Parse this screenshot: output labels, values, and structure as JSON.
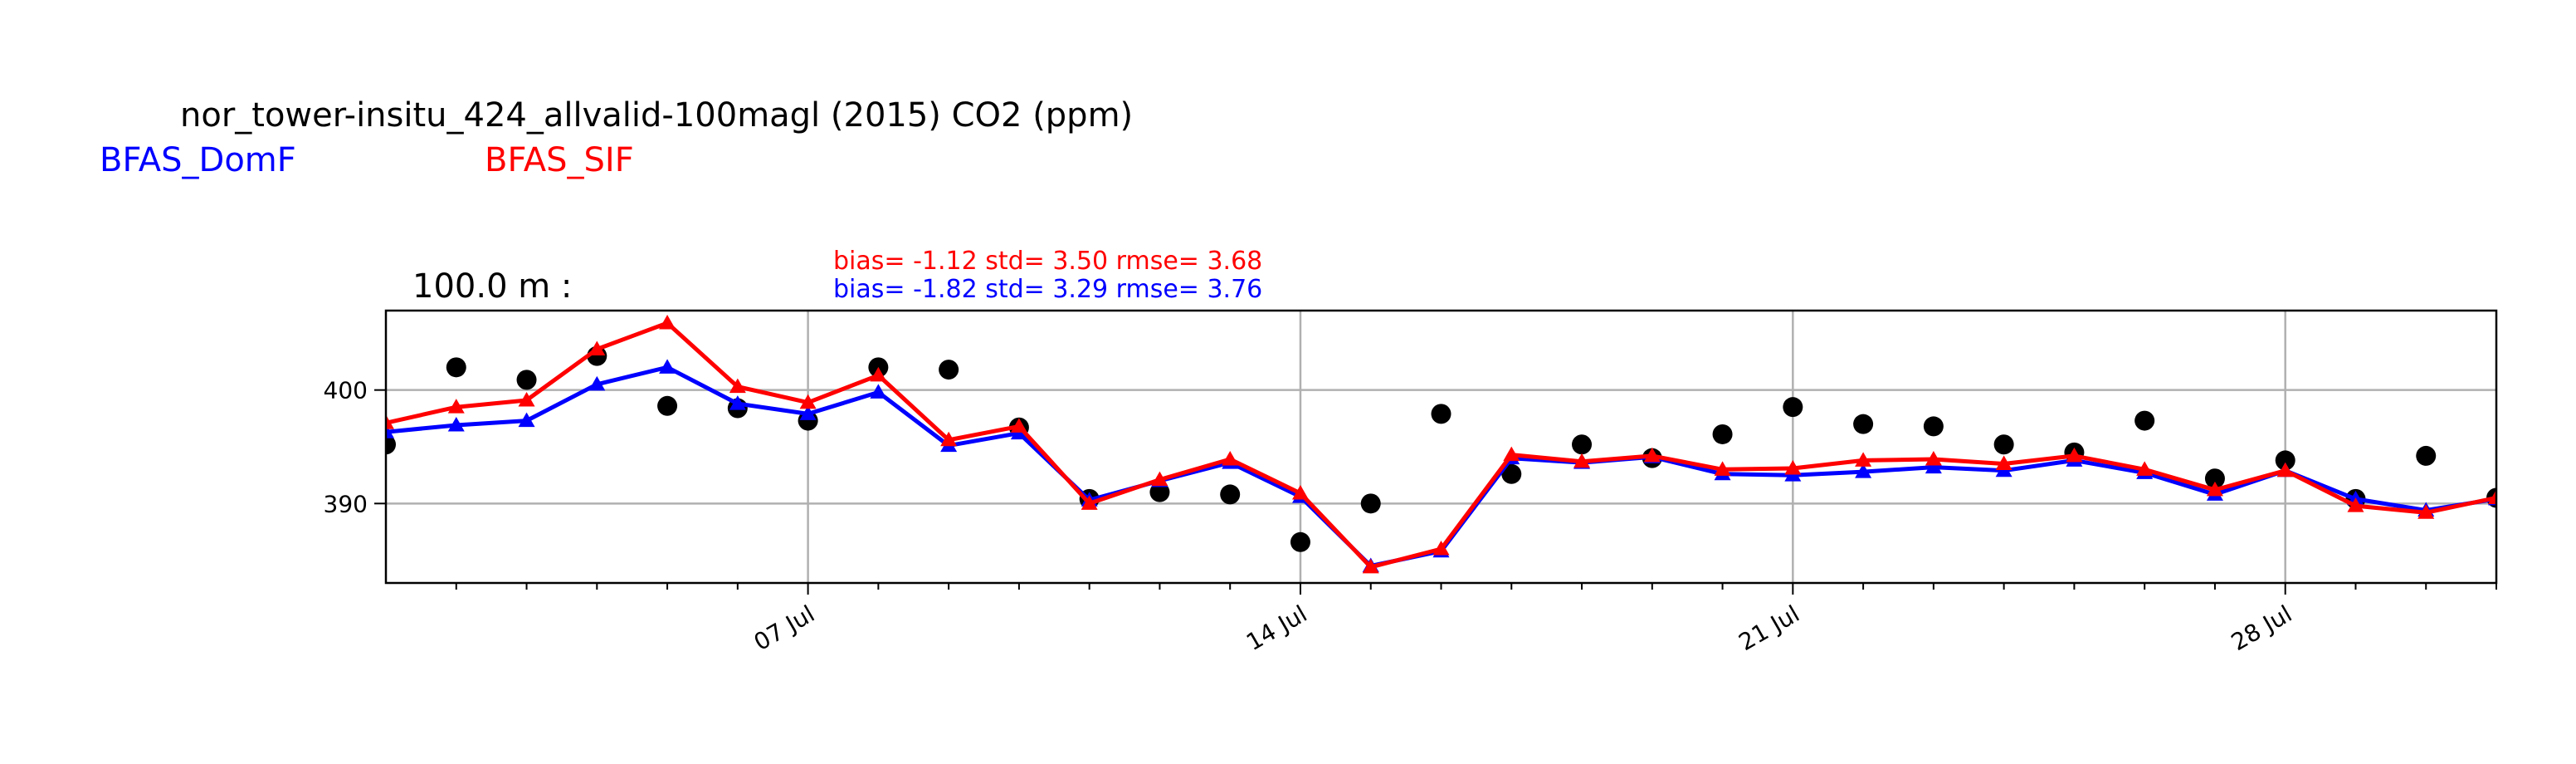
{
  "colors": {
    "obs": "#000000",
    "model_a": "#0000ff",
    "model_b": "#ff0000",
    "grid": "#b0b0b0"
  },
  "chart_data": {
    "type": "line",
    "title": "nor_tower-insitu_424_allvalid-100magl (2015) CO2 (ppm)",
    "panel_label": "100.0 m :",
    "legend": [
      {
        "name": "BFAS_DomF",
        "color": "#0000ff"
      },
      {
        "name": "BFAS_SIF",
        "color": "#ff0000"
      }
    ],
    "stats": [
      {
        "text": "bias= -1.12 std= 3.50 rmse= 3.68",
        "color": "#ff0000"
      },
      {
        "text": "bias= -1.82 std= 3.29 rmse= 3.76",
        "color": "#0000ff"
      }
    ],
    "xlabel": "",
    "ylabel": "",
    "xlim": [
      "2015-07-01",
      "2015-07-31"
    ],
    "ylim": [
      383,
      407
    ],
    "grid": true,
    "x_ticks": [
      "2015-07-07",
      "2015-07-14",
      "2015-07-21",
      "2015-07-28"
    ],
    "x_tick_labels": [
      "07 Jul",
      "14 Jul",
      "21 Jul",
      "28 Jul"
    ],
    "y_ticks": [
      390,
      400
    ],
    "y_tick_labels": [
      "390",
      "400"
    ],
    "x": [
      "2015-07-01",
      "2015-07-02",
      "2015-07-03",
      "2015-07-04",
      "2015-07-05",
      "2015-07-06",
      "2015-07-07",
      "2015-07-08",
      "2015-07-09",
      "2015-07-10",
      "2015-07-11",
      "2015-07-12",
      "2015-07-13",
      "2015-07-14",
      "2015-07-15",
      "2015-07-16",
      "2015-07-17",
      "2015-07-18",
      "2015-07-19",
      "2015-07-20",
      "2015-07-21",
      "2015-07-22",
      "2015-07-23",
      "2015-07-24",
      "2015-07-25",
      "2015-07-26",
      "2015-07-27",
      "2015-07-28",
      "2015-07-29",
      "2015-07-30",
      "2015-07-31"
    ],
    "series": [
      {
        "name": "",
        "kind": "observed",
        "values": [
          395.2,
          402.0,
          400.9,
          403.0,
          398.6,
          398.4,
          397.3,
          402.0,
          401.8,
          396.7,
          390.4,
          391.0,
          390.8,
          386.6,
          390.0,
          397.9,
          392.6,
          395.2,
          394.0,
          396.1,
          398.5,
          397.0,
          396.8,
          395.2,
          394.5,
          397.3,
          392.2,
          393.8,
          390.4,
          394.2,
          390.5
        ]
      },
      {
        "name": "BFAS_DomF",
        "kind": "model",
        "color": "#0000ff",
        "values": [
          396.3,
          396.9,
          397.3,
          400.5,
          402.0,
          398.8,
          397.9,
          399.8,
          395.1,
          396.2,
          390.3,
          392.0,
          393.6,
          390.6,
          384.5,
          385.8,
          394.0,
          393.6,
          394.1,
          392.6,
          392.5,
          392.8,
          393.2,
          392.9,
          393.8,
          392.7,
          390.8,
          392.9,
          390.4,
          389.4,
          390.4
        ]
      },
      {
        "name": "BFAS_SIF",
        "kind": "model",
        "color": "#ff0000",
        "values": [
          397.1,
          398.5,
          399.1,
          403.6,
          405.9,
          400.3,
          398.9,
          401.3,
          395.6,
          396.8,
          390.0,
          392.1,
          393.9,
          390.9,
          384.4,
          386.0,
          394.3,
          393.7,
          394.2,
          393.0,
          393.1,
          393.8,
          393.9,
          393.5,
          394.2,
          393.0,
          391.2,
          392.9,
          389.8,
          389.2,
          390.5
        ]
      }
    ]
  }
}
